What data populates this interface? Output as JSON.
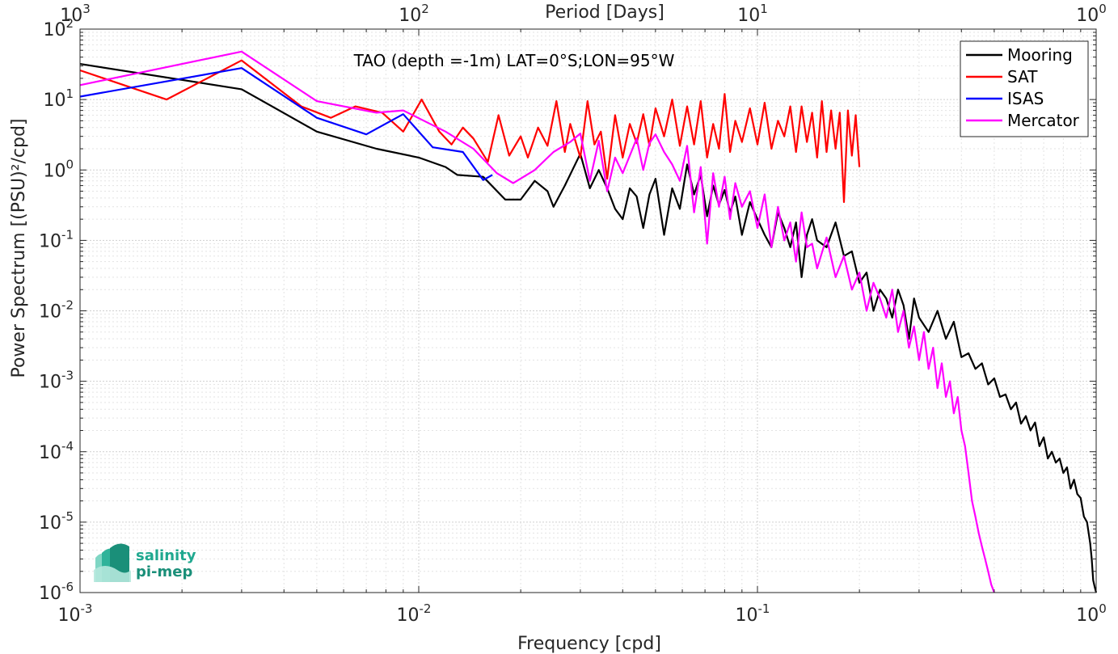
{
  "chart_data": {
    "type": "line",
    "title": "TAO (depth =-1m) LAT=0°S;LON=95°W",
    "xlabel": "Frequency [cpd]",
    "ylabel": "Power Spectrum [(PSU)²/cpd]",
    "x2label": "Period [Days]",
    "xscale": "log",
    "yscale": "log",
    "xlim": [
      0.001,
      1
    ],
    "ylim": [
      1e-06,
      100
    ],
    "x_ticks": [
      {
        "base": "10",
        "exp": "-3"
      },
      {
        "base": "10",
        "exp": "-2"
      },
      {
        "base": "10",
        "exp": "-1"
      },
      {
        "base": "10",
        "exp": "0"
      }
    ],
    "x2_ticks": [
      {
        "base": "10",
        "exp": "3"
      },
      {
        "base": "10",
        "exp": "2"
      },
      {
        "base": "10",
        "exp": "1"
      },
      {
        "base": "10",
        "exp": "0"
      }
    ],
    "y_ticks": [
      {
        "base": "10",
        "exp": "2"
      },
      {
        "base": "10",
        "exp": "1"
      },
      {
        "base": "10",
        "exp": "0"
      },
      {
        "base": "10",
        "exp": "-1"
      },
      {
        "base": "10",
        "exp": "-2"
      },
      {
        "base": "10",
        "exp": "-3"
      },
      {
        "base": "10",
        "exp": "-4"
      },
      {
        "base": "10",
        "exp": "-5"
      },
      {
        "base": "10",
        "exp": "-6"
      }
    ],
    "grid": true,
    "legend_position": "top-right",
    "series": [
      {
        "name": "Mooring",
        "color": "#000000",
        "x": [
          0.001,
          0.003,
          0.005,
          0.0075,
          0.01,
          0.012,
          0.013,
          0.0155,
          0.018,
          0.02,
          0.022,
          0.024,
          0.025,
          0.027,
          0.03,
          0.032,
          0.034,
          0.036,
          0.038,
          0.04,
          0.042,
          0.044,
          0.046,
          0.048,
          0.05,
          0.053,
          0.056,
          0.059,
          0.062,
          0.065,
          0.068,
          0.071,
          0.074,
          0.077,
          0.08,
          0.083,
          0.086,
          0.09,
          0.095,
          0.1,
          0.105,
          0.11,
          0.115,
          0.12,
          0.125,
          0.13,
          0.135,
          0.14,
          0.145,
          0.15,
          0.16,
          0.17,
          0.18,
          0.19,
          0.2,
          0.21,
          0.22,
          0.23,
          0.24,
          0.25,
          0.26,
          0.27,
          0.28,
          0.29,
          0.3,
          0.32,
          0.34,
          0.36,
          0.38,
          0.4,
          0.42,
          0.44,
          0.46,
          0.48,
          0.5,
          0.52,
          0.54,
          0.56,
          0.58,
          0.6,
          0.62,
          0.64,
          0.66,
          0.68,
          0.7,
          0.72,
          0.74,
          0.76,
          0.78,
          0.8,
          0.82,
          0.84,
          0.86,
          0.88,
          0.9,
          0.92,
          0.94,
          0.96,
          0.97,
          0.98,
          0.99,
          1.0
        ],
        "y": [
          32,
          14,
          3.5,
          2.0,
          1.5,
          1.1,
          0.85,
          0.8,
          0.38,
          0.38,
          0.7,
          0.5,
          0.3,
          0.6,
          1.7,
          0.55,
          1.0,
          0.55,
          0.28,
          0.2,
          0.55,
          0.42,
          0.15,
          0.45,
          0.75,
          0.12,
          0.55,
          0.28,
          1.2,
          0.45,
          0.85,
          0.22,
          0.6,
          0.32,
          0.52,
          0.25,
          0.42,
          0.12,
          0.35,
          0.2,
          0.12,
          0.08,
          0.25,
          0.15,
          0.08,
          0.18,
          0.03,
          0.12,
          0.2,
          0.1,
          0.08,
          0.18,
          0.06,
          0.07,
          0.025,
          0.035,
          0.01,
          0.02,
          0.015,
          0.008,
          0.02,
          0.012,
          0.004,
          0.015,
          0.008,
          0.005,
          0.01,
          0.004,
          0.007,
          0.0022,
          0.0025,
          0.0015,
          0.0018,
          0.0009,
          0.0011,
          0.0006,
          0.00065,
          0.0004,
          0.0005,
          0.00025,
          0.00032,
          0.0002,
          0.00026,
          0.00012,
          0.00016,
          8e-05,
          0.0001,
          7e-05,
          8e-05,
          5e-05,
          6e-05,
          3e-05,
          4e-05,
          2.5e-05,
          2.2e-05,
          1.2e-05,
          1e-05,
          5e-06,
          3e-06,
          1.5e-06,
          1.2e-06,
          1e-06
        ]
      },
      {
        "name": "SAT",
        "color": "#ff0000",
        "x": [
          0.001,
          0.0018,
          0.003,
          0.0045,
          0.0055,
          0.0065,
          0.0078,
          0.009,
          0.0102,
          0.0115,
          0.0125,
          0.0135,
          0.0145,
          0.016,
          0.0172,
          0.0185,
          0.02,
          0.021,
          0.0225,
          0.024,
          0.0255,
          0.027,
          0.028,
          0.03,
          0.0315,
          0.033,
          0.0345,
          0.036,
          0.038,
          0.04,
          0.042,
          0.044,
          0.046,
          0.048,
          0.05,
          0.053,
          0.056,
          0.059,
          0.062,
          0.065,
          0.068,
          0.071,
          0.074,
          0.077,
          0.08,
          0.083,
          0.086,
          0.09,
          0.095,
          0.1,
          0.105,
          0.11,
          0.115,
          0.12,
          0.125,
          0.13,
          0.135,
          0.14,
          0.145,
          0.15,
          0.155,
          0.16,
          0.165,
          0.17,
          0.175,
          0.18,
          0.185,
          0.19,
          0.195,
          0.2
        ],
        "y": [
          26,
          10,
          36,
          8.0,
          5.5,
          8.0,
          6.5,
          3.5,
          10,
          3.5,
          2.3,
          4.0,
          2.8,
          1.3,
          6.0,
          1.6,
          3.0,
          1.5,
          4.0,
          2.2,
          9.5,
          1.8,
          4.5,
          1.5,
          9.5,
          2.3,
          3.5,
          0.75,
          6.0,
          1.5,
          4.5,
          2.4,
          6.2,
          2.2,
          7.5,
          3.0,
          10,
          2.2,
          8.0,
          2.3,
          9.5,
          1.5,
          4.5,
          2.0,
          12,
          1.8,
          5.0,
          2.5,
          7.5,
          2.3,
          9.0,
          2.0,
          5.0,
          3.0,
          8.0,
          1.8,
          8.0,
          2.5,
          6.5,
          1.5,
          9.5,
          1.8,
          7.0,
          2.0,
          6.5,
          0.35,
          7.0,
          1.6,
          6.0,
          1.1
        ]
      },
      {
        "name": "ISAS",
        "color": "#0000ff",
        "x": [
          0.001,
          0.003,
          0.005,
          0.007,
          0.009,
          0.011,
          0.0135,
          0.0155,
          0.0165
        ],
        "y": [
          11,
          28,
          5.5,
          3.2,
          6.2,
          2.1,
          1.8,
          0.72,
          0.85
        ]
      },
      {
        "name": "Mercator",
        "color": "#ff00ff",
        "x": [
          0.001,
          0.003,
          0.005,
          0.0075,
          0.009,
          0.012,
          0.0145,
          0.017,
          0.019,
          0.022,
          0.025,
          0.028,
          0.03,
          0.032,
          0.034,
          0.036,
          0.038,
          0.04,
          0.042,
          0.044,
          0.046,
          0.048,
          0.05,
          0.053,
          0.056,
          0.059,
          0.062,
          0.065,
          0.068,
          0.071,
          0.074,
          0.077,
          0.08,
          0.083,
          0.086,
          0.09,
          0.095,
          0.1,
          0.105,
          0.11,
          0.115,
          0.12,
          0.125,
          0.13,
          0.135,
          0.14,
          0.145,
          0.15,
          0.16,
          0.17,
          0.18,
          0.19,
          0.2,
          0.21,
          0.22,
          0.23,
          0.24,
          0.25,
          0.26,
          0.27,
          0.28,
          0.29,
          0.3,
          0.31,
          0.32,
          0.33,
          0.34,
          0.35,
          0.36,
          0.37,
          0.38,
          0.39,
          0.4,
          0.41,
          0.42,
          0.43,
          0.44,
          0.45,
          0.46,
          0.47,
          0.48,
          0.49,
          0.5
        ],
        "y": [
          16,
          48,
          9.5,
          6.5,
          7.0,
          3.5,
          2.0,
          0.9,
          0.65,
          1.0,
          1.8,
          2.5,
          3.3,
          0.7,
          2.6,
          0.5,
          1.5,
          0.9,
          1.6,
          2.8,
          1.0,
          2.4,
          3.2,
          1.8,
          1.2,
          0.7,
          2.2,
          0.25,
          1.1,
          0.09,
          0.9,
          0.3,
          0.8,
          0.2,
          0.65,
          0.3,
          0.5,
          0.15,
          0.45,
          0.08,
          0.3,
          0.1,
          0.18,
          0.05,
          0.25,
          0.08,
          0.09,
          0.04,
          0.11,
          0.03,
          0.06,
          0.02,
          0.035,
          0.01,
          0.025,
          0.015,
          0.008,
          0.02,
          0.005,
          0.01,
          0.003,
          0.006,
          0.002,
          0.005,
          0.0015,
          0.003,
          0.0008,
          0.0018,
          0.0006,
          0.001,
          0.00035,
          0.0006,
          0.0002,
          0.00012,
          5e-05,
          2e-05,
          1.2e-05,
          7e-06,
          4.5e-06,
          3e-06,
          2e-06,
          1.3e-06,
          1e-06
        ]
      }
    ]
  },
  "logo": {
    "line1": "salinity",
    "line2": "pi-mep",
    "color": "#1fa88f"
  }
}
